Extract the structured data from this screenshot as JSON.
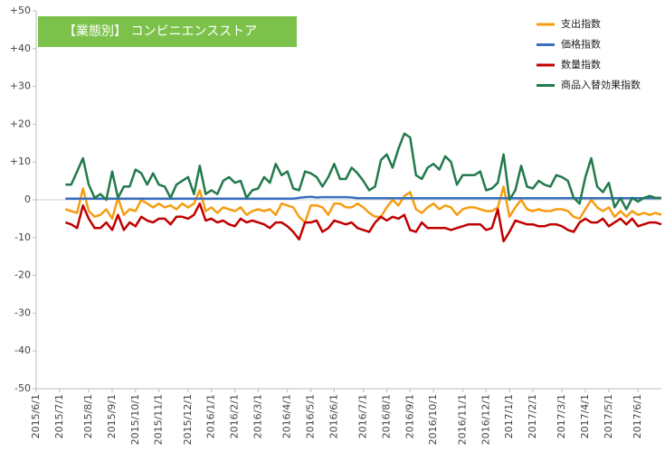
{
  "chart_data": {
    "type": "line",
    "title": "【業態別】 コンビニエンスストア",
    "title_color": "#7cc24a",
    "categories": [
      "2015/6/1",
      null,
      null,
      null,
      "2015/7/1",
      null,
      null,
      null,
      null,
      "2015/8/1",
      null,
      null,
      null,
      "2015/9/1",
      null,
      null,
      null,
      "2015/10/1",
      null,
      null,
      null,
      "2015/11/1",
      null,
      null,
      null,
      null,
      "2015/12/1",
      null,
      null,
      null,
      "2016/1/1",
      null,
      null,
      null,
      "2016/2/1",
      null,
      null,
      null,
      "2016/3/1",
      null,
      null,
      null,
      null,
      "2016/4/1",
      null,
      null,
      null,
      "2016/5/1",
      null,
      null,
      null,
      "2016/6/1",
      null,
      null,
      null,
      null,
      "2016/7/1",
      null,
      null,
      null,
      "2016/8/1",
      null,
      null,
      null,
      "2016/9/1",
      null,
      null,
      null,
      "2016/10/1",
      null,
      null,
      null,
      null,
      "2016/11/1",
      null,
      null,
      null,
      "2016/12/1",
      null,
      null,
      null,
      "2017/1/1",
      null,
      null,
      null,
      "2017/2/1",
      null,
      null,
      null,
      null,
      "2017/3/1",
      null,
      null,
      null,
      "2017/4/1",
      null,
      null,
      null,
      "2017/5/1",
      null,
      null,
      null,
      null,
      "2017/6/1",
      null,
      null,
      null,
      null
    ],
    "series": [
      {
        "name": "支出指数",
        "color": "#f59d12",
        "values": [
          null,
          null,
          null,
          null,
          null,
          -2.5,
          -3,
          -3.5,
          3,
          -3,
          -4.5,
          -4,
          -2.5,
          -5,
          0.5,
          -4,
          -2.5,
          -3,
          0,
          -1,
          -2,
          -1,
          -2,
          -1.5,
          -2.5,
          -1,
          -2,
          -1,
          2.5,
          -3,
          -2,
          -3.5,
          -2,
          -2.5,
          -3,
          -2,
          -4,
          -3,
          -2.5,
          -3,
          -2.5,
          -4,
          -1,
          -1.5,
          -2,
          -4.5,
          -6,
          -1.5,
          -1.5,
          -2,
          -4,
          -1,
          -1,
          -2,
          -2,
          -1,
          -2,
          -3.5,
          -4.5,
          -4.5,
          -2,
          0,
          -1.5,
          1,
          2,
          -2.5,
          -3.5,
          -2,
          -1,
          -2.5,
          -1.5,
          -2,
          -4,
          -2.5,
          -2,
          -2,
          -2.5,
          -3,
          -3,
          -2,
          3.5,
          -4.5,
          -2,
          0,
          -2.5,
          -3,
          -2.5,
          -3,
          -3,
          -2.5,
          -2.5,
          -3,
          -4.5,
          -5,
          -2.5,
          0,
          -2,
          -3,
          -2,
          -4.5,
          -3,
          -4.5,
          -3,
          -4,
          -3.5,
          -4,
          -3.5,
          -4
        ]
      },
      {
        "name": "価格指数",
        "color": "#3a6fc0",
        "values": [
          null,
          null,
          null,
          null,
          null,
          0.3,
          0.3,
          0.3,
          0.3,
          0.3,
          0.3,
          0.3,
          0.3,
          0.3,
          0.3,
          0.3,
          0.3,
          0.3,
          0.3,
          0.3,
          0.3,
          0.3,
          0.3,
          0.3,
          0.3,
          0.3,
          0.3,
          0.3,
          0.3,
          0.3,
          0.3,
          0.3,
          0.3,
          0.3,
          0.3,
          0.3,
          0.3,
          0.3,
          0.3,
          0.3,
          0.3,
          0.3,
          0.3,
          0.3,
          0.3,
          0.5,
          0.7,
          0.8,
          0.6,
          0.7,
          0.7,
          0.7,
          0.7,
          0.7,
          0.6,
          0.4,
          0.4,
          0.4,
          0.4,
          0.4,
          0.4,
          0.4,
          0.4,
          0.4,
          0.4,
          0.4,
          0.4,
          0.4,
          0.4,
          0.4,
          0.4,
          0.4,
          0.4,
          0.4,
          0.4,
          0.4,
          0.4,
          0.4,
          0.4,
          0.4,
          0.4,
          0.4,
          0.4,
          0.4,
          0.4,
          0.4,
          0.4,
          0.4,
          0.4,
          0.4,
          0.4,
          0.4,
          0.4,
          0.4,
          0.4,
          0.4,
          0.4,
          0.4,
          0.4,
          0.4,
          0.4,
          0.4,
          0.4,
          0.4,
          0.4,
          0.4,
          0.4,
          0.4
        ]
      },
      {
        "name": "数量指数",
        "color": "#c00000",
        "values": [
          null,
          null,
          null,
          null,
          null,
          -6,
          -6.5,
          -7.5,
          -1.5,
          -5,
          -7.5,
          -7.5,
          -6,
          -8,
          -4,
          -8,
          -6,
          -7,
          -4.5,
          -5.5,
          -6,
          -5,
          -5,
          -6.5,
          -4.5,
          -4.5,
          -5,
          -4,
          -1,
          -5.5,
          -5,
          -6,
          -5.5,
          -6.5,
          -7,
          -5,
          -6,
          -5.5,
          -6,
          -6.5,
          -7.5,
          -6,
          -6,
          -7,
          -8.5,
          -10.5,
          -6,
          -6,
          -5.5,
          -8.5,
          -7.5,
          -5.5,
          -6,
          -6.5,
          -6,
          -7.5,
          -8,
          -8.5,
          -6,
          -4.5,
          -5.5,
          -4.5,
          -5,
          -4,
          -8,
          -8.5,
          -6,
          -7.5,
          -7.5,
          -7.5,
          -7.5,
          -8,
          -7.5,
          -7,
          -6.5,
          -6.5,
          -6.5,
          -8,
          -7.5,
          -2.5,
          -11,
          -8.5,
          -5.5,
          -6,
          -6.5,
          -6.5,
          -7,
          -7,
          -6.5,
          -6.5,
          -7,
          -8,
          -8.5,
          -6,
          -5,
          -6,
          -6,
          -5,
          -7,
          -6,
          -5,
          -6.5,
          -5,
          -7,
          -6.5,
          -6,
          -6,
          -6.5
        ]
      },
      {
        "name": "商品入替効果指数",
        "color": "#217a4b",
        "values": [
          null,
          null,
          null,
          null,
          null,
          4,
          4,
          7.5,
          11,
          4,
          0.5,
          1.5,
          0,
          7.5,
          0.5,
          3.5,
          3.5,
          8,
          7,
          4,
          7,
          4,
          3.5,
          0.5,
          4,
          5,
          6,
          1.5,
          9,
          1.5,
          2.5,
          1.5,
          5,
          6,
          4.5,
          5,
          0.5,
          2.5,
          3,
          6,
          4.5,
          9.5,
          6.5,
          7.5,
          3,
          2.5,
          7.5,
          7,
          6,
          3.5,
          6,
          9.5,
          5.5,
          5.5,
          8.5,
          7,
          5,
          2.5,
          3.5,
          10.5,
          12,
          8.5,
          13.5,
          17.5,
          16.5,
          6.5,
          5.5,
          8.5,
          9.5,
          8,
          11.5,
          10,
          4,
          6.5,
          6.5,
          6.5,
          7.5,
          2.5,
          3,
          4.5,
          12,
          0,
          2.5,
          9,
          3.5,
          3,
          5,
          4,
          3.5,
          6.5,
          6,
          5,
          0.5,
          -1,
          6,
          11,
          3.5,
          2,
          4.5,
          -2,
          0.5,
          -2.5,
          0.5,
          -0.5,
          0.5,
          1,
          0.5,
          0.5
        ]
      }
    ],
    "ylim": [
      -50,
      50
    ],
    "yticks": [
      {
        "value": 50,
        "label": "+50"
      },
      {
        "value": 40,
        "label": "+40"
      },
      {
        "value": 30,
        "label": "+30"
      },
      {
        "value": 20,
        "label": "+20"
      },
      {
        "value": 10,
        "label": "+10"
      },
      0,
      -10,
      -20,
      -30,
      -40,
      -50
    ],
    "grid": false,
    "legend": "top-right"
  }
}
